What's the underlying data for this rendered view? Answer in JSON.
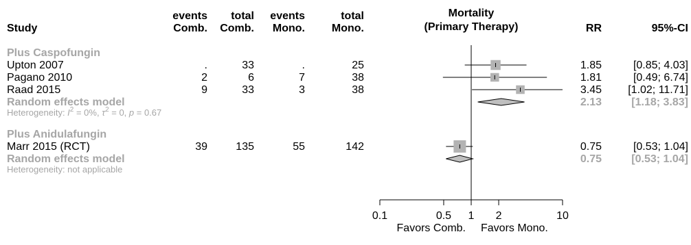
{
  "chart_data": {
    "type": "forest",
    "title": "Mortality (Primary Therapy)",
    "headers": {
      "study": "Study",
      "events_comb": [
        "events",
        "Comb."
      ],
      "total_comb": [
        "total",
        "Comb."
      ],
      "events_mono": [
        "events",
        "Mono."
      ],
      "total_mono": [
        "total",
        "Mono."
      ],
      "plot": [
        "Mortality",
        "(Primary Therapy)"
      ],
      "rr": "RR",
      "ci": "95%-CI"
    },
    "x_scale": "log",
    "xlim": [
      0.1,
      10
    ],
    "ticks": [
      0.1,
      0.5,
      1,
      2,
      10
    ],
    "tick_labels": [
      "0.1",
      "0.5",
      "1",
      "2",
      "10"
    ],
    "reference_line": 1,
    "x_footer": [
      "Favors Comb.",
      "Favors Mono."
    ],
    "colors": {
      "text": "#000000",
      "group": "#a6a6a6",
      "square": "#b3b3b3",
      "diamond": "#bfbfbf"
    },
    "groups": [
      {
        "name": "Plus Caspofungin",
        "studies": [
          {
            "study": "Upton 2007",
            "events_comb": ".",
            "total_comb": "33",
            "events_mono": ".",
            "total_mono": "25",
            "rr": 1.85,
            "lower": 0.85,
            "upper": 4.03,
            "rr_label": "1.85",
            "ci_label": "[0.85;  4.03]",
            "weight": 0.5
          },
          {
            "study": "Pagano 2010",
            "events_comb": "2",
            "total_comb": "6",
            "events_mono": "7",
            "total_mono": "38",
            "rr": 1.81,
            "lower": 0.49,
            "upper": 6.74,
            "rr_label": "1.81",
            "ci_label": "[0.49;  6.74]",
            "weight": 0.3
          },
          {
            "study": "Raad  2015",
            "events_comb": "9",
            "total_comb": "33",
            "events_mono": "3",
            "total_mono": "38",
            "rr": 3.45,
            "lower": 1.02,
            "upper": 11.71,
            "rr_label": "3.45",
            "ci_label": "[1.02; 11.71]",
            "weight": 0.3
          }
        ],
        "pooled": {
          "label": "Random effects model",
          "rr": 2.13,
          "lower": 1.18,
          "upper": 3.83,
          "rr_label": "2.13",
          "ci_label": "[1.18;  3.83]"
        },
        "heterogeneity": {
          "prefix": "Heterogeneity: ",
          "i_symbol": "I",
          "i_sup": "2",
          "i_value": " = 0%, ",
          "tau_symbol": "τ",
          "tau_sup": "2",
          "tau_value": " = 0, ",
          "p_symbol": "p",
          "p_value": " = 0.67"
        }
      },
      {
        "name": "Plus Anidulafungin",
        "studies": [
          {
            "study": "Marr 2015 (RCT)",
            "events_comb": "39",
            "total_comb": "135",
            "events_mono": "55",
            "total_mono": "142",
            "rr": 0.75,
            "lower": 0.53,
            "upper": 1.04,
            "rr_label": "0.75",
            "ci_label": "[0.53;  1.04]",
            "weight": 1.0
          }
        ],
        "pooled": {
          "label": "Random effects model",
          "rr": 0.75,
          "lower": 0.53,
          "upper": 1.04,
          "rr_label": "0.75",
          "ci_label": "[0.53;  1.04]"
        },
        "heterogeneity": {
          "prefix": "Heterogeneity: not applicable"
        }
      }
    ]
  }
}
